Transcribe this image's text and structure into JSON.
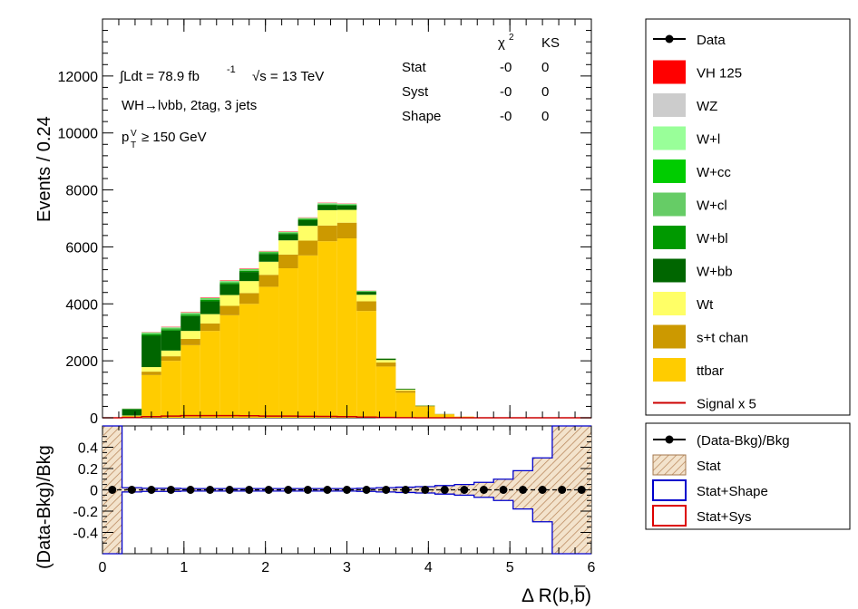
{
  "chart_data": {
    "type": "bar",
    "stacked": true,
    "xlabel": "Δ R(b,b̅)",
    "ylabel": "Events / 0.24",
    "ratio_ylabel": "(Data-Bkg)/Bkg",
    "xlim": [
      0,
      6
    ],
    "ylim": [
      0,
      14000
    ],
    "ratio_ylim": [
      -0.6,
      0.6
    ],
    "x_ticks": [
      "0",
      "1",
      "2",
      "3",
      "4",
      "5",
      "6"
    ],
    "y_ticks": [
      "0",
      "2000",
      "4000",
      "6000",
      "8000",
      "10000",
      "12000"
    ],
    "ratio_y_ticks": [
      "0.4",
      "0.2",
      "0",
      "-0.2",
      "-0.4"
    ],
    "bin_edges": [
      0,
      0.24,
      0.48,
      0.72,
      0.96,
      1.2,
      1.44,
      1.68,
      1.92,
      2.16,
      2.4,
      2.64,
      2.88,
      3.12,
      3.36,
      3.6,
      3.84,
      4.08,
      4.32,
      4.56,
      4.8,
      5.04,
      5.28,
      5.52,
      5.76,
      6.0
    ],
    "series": [
      {
        "name": "ttbar",
        "color": "#ffcc00",
        "values": [
          0,
          60,
          1500,
          2000,
          2550,
          3050,
          3600,
          4000,
          4600,
          5250,
          5700,
          6200,
          6300,
          3750,
          1800,
          880,
          380,
          120,
          40,
          10,
          0,
          0,
          0,
          0,
          0
        ]
      },
      {
        "name": "s+t chan",
        "color": "#cc9900",
        "values": [
          0,
          10,
          120,
          160,
          220,
          260,
          330,
          380,
          420,
          480,
          520,
          550,
          550,
          340,
          140,
          70,
          30,
          10,
          3,
          0,
          0,
          0,
          0,
          0,
          0
        ]
      },
      {
        "name": "Wt",
        "color": "#ffff66",
        "values": [
          0,
          10,
          160,
          200,
          280,
          330,
          380,
          420,
          460,
          500,
          520,
          540,
          450,
          230,
          90,
          40,
          15,
          5,
          0,
          0,
          0,
          0,
          0,
          0,
          0
        ]
      },
      {
        "name": "W+bb",
        "color": "#006600",
        "values": [
          0,
          220,
          1100,
          700,
          520,
          450,
          380,
          320,
          270,
          220,
          200,
          170,
          150,
          100,
          40,
          25,
          10,
          3,
          0,
          0,
          0,
          0,
          0,
          0,
          0
        ]
      },
      {
        "name": "W+bl",
        "color": "#009900",
        "values": [
          0,
          10,
          50,
          50,
          50,
          50,
          45,
          40,
          35,
          30,
          30,
          25,
          25,
          15,
          5,
          3,
          0,
          0,
          0,
          0,
          0,
          0,
          0,
          0,
          0
        ]
      },
      {
        "name": "W+cl",
        "color": "#66cc66",
        "values": [
          0,
          5,
          25,
          30,
          30,
          30,
          30,
          25,
          25,
          20,
          20,
          20,
          15,
          10,
          5,
          3,
          0,
          0,
          0,
          0,
          0,
          0,
          0,
          0,
          0
        ]
      },
      {
        "name": "W+cc",
        "color": "#00cc00",
        "values": [
          0,
          5,
          20,
          20,
          20,
          20,
          20,
          20,
          15,
          15,
          15,
          15,
          10,
          5,
          3,
          0,
          0,
          0,
          0,
          0,
          0,
          0,
          0,
          0,
          0
        ]
      },
      {
        "name": "W+l",
        "color": "#99ff99",
        "values": [
          0,
          0,
          10,
          10,
          10,
          10,
          10,
          10,
          10,
          10,
          10,
          10,
          5,
          5,
          0,
          0,
          0,
          0,
          0,
          0,
          0,
          0,
          0,
          0,
          0
        ]
      },
      {
        "name": "WZ",
        "color": "#cccccc",
        "values": [
          0,
          0,
          10,
          10,
          10,
          10,
          10,
          10,
          10,
          10,
          10,
          10,
          10,
          5,
          3,
          0,
          0,
          0,
          0,
          0,
          0,
          0,
          0,
          0,
          0
        ]
      },
      {
        "name": "VH 125",
        "color": "#ff0000",
        "values": [
          0,
          2,
          8,
          12,
          15,
          15,
          15,
          15,
          12,
          12,
          10,
          10,
          8,
          5,
          2,
          1,
          0,
          0,
          0,
          0,
          0,
          0,
          0,
          0,
          0
        ]
      }
    ],
    "signal_x5": {
      "name": "Signal x 5",
      "color": "#cc0000",
      "values": [
        0,
        10,
        40,
        60,
        75,
        75,
        75,
        72,
        60,
        58,
        50,
        48,
        40,
        25,
        10,
        5,
        0,
        0,
        0,
        0,
        0,
        0,
        0,
        0,
        0
      ]
    },
    "ratio": {
      "points_x": [
        0.12,
        0.36,
        0.6,
        0.84,
        1.08,
        1.32,
        1.56,
        1.8,
        2.04,
        2.28,
        2.52,
        2.76,
        3.0,
        3.24,
        3.48,
        3.72,
        3.96,
        4.2,
        4.44,
        4.68,
        4.92,
        5.16,
        5.4,
        5.64,
        5.88
      ],
      "points_y": [
        0,
        0,
        0,
        0,
        0,
        0,
        0,
        0,
        0,
        0,
        0,
        0,
        0,
        0,
        0,
        0,
        0,
        0,
        0,
        0,
        0,
        0,
        0,
        0,
        0
      ],
      "stat_band": [
        0.6,
        0.02,
        0.015,
        0.015,
        0.012,
        0.012,
        0.012,
        0.012,
        0.012,
        0.012,
        0.012,
        0.012,
        0.012,
        0.015,
        0.02,
        0.025,
        0.03,
        0.04,
        0.05,
        0.07,
        0.1,
        0.18,
        0.3,
        0.6,
        0.6
      ],
      "shape_band": [
        0.6,
        0.02,
        0.015,
        0.015,
        0.012,
        0.012,
        0.012,
        0.012,
        0.012,
        0.012,
        0.012,
        0.012,
        0.012,
        0.015,
        0.02,
        0.025,
        0.03,
        0.04,
        0.05,
        0.07,
        0.1,
        0.18,
        0.3,
        0.6,
        0.6
      ]
    },
    "annotations": {
      "lumi": "∫Ldt = 78.9 fb",
      "lumi_exp": "-1",
      "energy": "√s = 13 TeV",
      "channel": "WH→lνbb, 2tag, 3 jets",
      "cut_p": "p",
      "cut_sup": "V",
      "cut_sub": "T",
      "cut_rest": "≥ 150 GeV"
    },
    "stats_table": {
      "headers": [
        "χ²",
        "KS"
      ],
      "chi_base": "χ",
      "chi_sup": "2",
      "rows": [
        {
          "label": "Stat",
          "chi2": "-0",
          "ks": "0"
        },
        {
          "label": "Syst",
          "chi2": "-0",
          "ks": "0"
        },
        {
          "label": "Shape",
          "chi2": "-0",
          "ks": "0"
        }
      ]
    },
    "legend_main": [
      {
        "label": "Data",
        "kind": "marker",
        "color": "#000000"
      },
      {
        "label": "VH 125",
        "kind": "box",
        "color": "#ff0000"
      },
      {
        "label": "WZ",
        "kind": "box",
        "color": "#cccccc"
      },
      {
        "label": "W+l",
        "kind": "box",
        "color": "#99ff99"
      },
      {
        "label": "W+cc",
        "kind": "box",
        "color": "#00cc00"
      },
      {
        "label": "W+cl",
        "kind": "box",
        "color": "#66cc66"
      },
      {
        "label": "W+bl",
        "kind": "box",
        "color": "#009900"
      },
      {
        "label": "W+bb",
        "kind": "box",
        "color": "#006600"
      },
      {
        "label": "Wt",
        "kind": "box",
        "color": "#ffff66"
      },
      {
        "label": "s+t chan",
        "kind": "box",
        "color": "#cc9900"
      },
      {
        "label": "ttbar",
        "kind": "box",
        "color": "#ffcc00"
      },
      {
        "label": "Signal x 5",
        "kind": "line",
        "color": "#cc0000"
      }
    ],
    "legend_ratio": [
      {
        "label": "(Data-Bkg)/Bkg",
        "kind": "marker",
        "color": "#000000"
      },
      {
        "label": "Stat",
        "kind": "hatch",
        "color": "#deb887"
      },
      {
        "label": "Stat+Shape",
        "kind": "outline",
        "color": "#0000cc"
      },
      {
        "label": "Stat+Sys",
        "kind": "outline",
        "color": "#dd0000"
      }
    ],
    "legend_placement": "right",
    "grid": false
  }
}
